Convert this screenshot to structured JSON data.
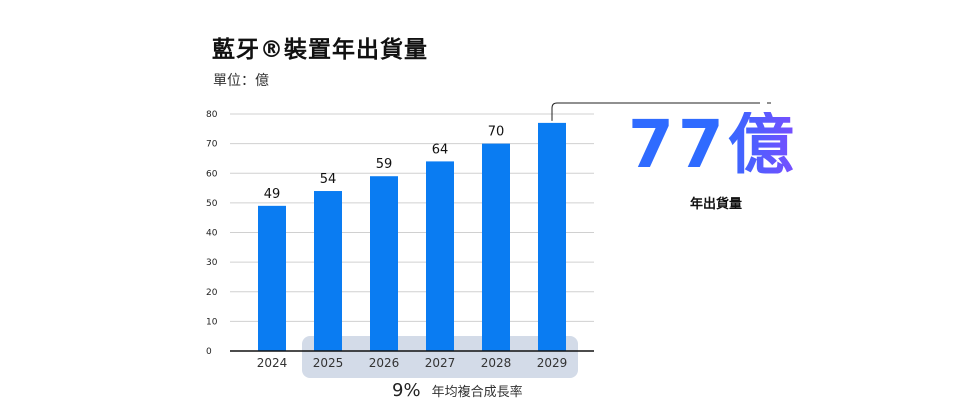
{
  "title": "藍牙®裝置年出貨量",
  "unit": "單位：億",
  "cagr": {
    "value": "9%",
    "label": "年均複合成長率"
  },
  "highlight": {
    "value": "77億",
    "label": "年出貨量"
  },
  "colors": {
    "bar": "#0a7cf2",
    "cagr_band": "#d3dbe8",
    "highlight_start": "#2f6bff",
    "highlight_end": "#7a4dff"
  },
  "chart_data": {
    "type": "bar",
    "categories": [
      "2024",
      "2025",
      "2026",
      "2027",
      "2028",
      "2029"
    ],
    "values": [
      49,
      54,
      59,
      64,
      70,
      77
    ],
    "data_labels": [
      "49",
      "54",
      "59",
      "64",
      "70",
      ""
    ],
    "yticks": [
      0,
      10,
      20,
      30,
      40,
      50,
      60,
      70,
      80
    ],
    "ylim": [
      0,
      80
    ],
    "title": "藍牙®裝置年出貨量",
    "xlabel": "",
    "ylabel": "",
    "grid": true,
    "legend": false,
    "highlighted_range": [
      "2025",
      "2029"
    ]
  }
}
